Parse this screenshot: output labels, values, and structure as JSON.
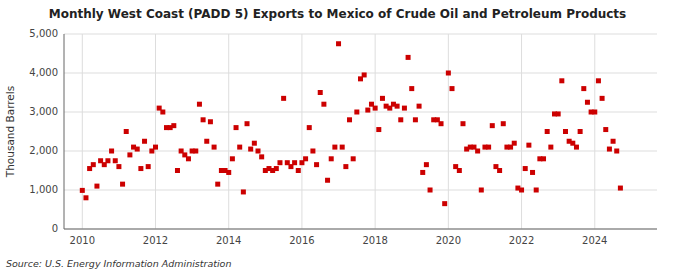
{
  "chart_data": {
    "type": "scatter",
    "title": "Monthly West Coast (PADD 5) Exports to Mexico of Crude Oil and Petroleum Products",
    "ylabel": "Thousand Barrels",
    "annotations": [
      "Source: U.S. Energy Information Administration"
    ],
    "color": "#cc0000",
    "marker": "square",
    "grid": true,
    "xlim": [
      2009.5,
      2025.7
    ],
    "xticks": [
      2010,
      2012,
      2014,
      2016,
      2018,
      2020,
      2022,
      2024
    ],
    "ylim": [
      0,
      5000
    ],
    "yticks": [
      0,
      {
        "value": 1000,
        "label": "1,000"
      },
      {
        "value": 2000,
        "label": "2,000"
      },
      {
        "value": 3000,
        "label": "3,000"
      },
      {
        "value": 4000,
        "label": "4,000"
      },
      {
        "value": 5000,
        "label": "5,000"
      }
    ],
    "x": [
      2010.0,
      2010.1,
      2010.2,
      2010.3,
      2010.4,
      2010.5,
      2010.6,
      2010.7,
      2010.8,
      2010.9,
      2011.0,
      2011.1,
      2011.2,
      2011.3,
      2011.4,
      2011.5,
      2011.6,
      2011.7,
      2011.8,
      2011.9,
      2012.0,
      2012.1,
      2012.2,
      2012.3,
      2012.4,
      2012.5,
      2012.6,
      2012.7,
      2012.8,
      2012.9,
      2013.0,
      2013.1,
      2013.2,
      2013.3,
      2013.4,
      2013.5,
      2013.6,
      2013.7,
      2013.8,
      2013.9,
      2014.0,
      2014.1,
      2014.2,
      2014.3,
      2014.4,
      2014.5,
      2014.6,
      2014.7,
      2014.8,
      2014.9,
      2015.0,
      2015.1,
      2015.2,
      2015.3,
      2015.4,
      2015.5,
      2015.6,
      2015.7,
      2015.8,
      2015.9,
      2016.0,
      2016.1,
      2016.2,
      2016.3,
      2016.4,
      2016.5,
      2016.6,
      2016.7,
      2016.8,
      2016.9,
      2017.0,
      2017.1,
      2017.2,
      2017.3,
      2017.4,
      2017.5,
      2017.6,
      2017.7,
      2017.8,
      2017.9,
      2018.0,
      2018.1,
      2018.2,
      2018.3,
      2018.4,
      2018.5,
      2018.6,
      2018.7,
      2018.8,
      2018.9,
      2019.0,
      2019.1,
      2019.2,
      2019.3,
      2019.4,
      2019.5,
      2019.6,
      2019.7,
      2019.8,
      2019.9,
      2020.0,
      2020.1,
      2020.2,
      2020.3,
      2020.4,
      2020.5,
      2020.6,
      2020.7,
      2020.8,
      2020.9,
      2021.0,
      2021.1,
      2021.2,
      2021.3,
      2021.4,
      2021.5,
      2021.6,
      2021.7,
      2021.8,
      2021.9,
      2022.0,
      2022.1,
      2022.2,
      2022.3,
      2022.4,
      2022.5,
      2022.6,
      2022.7,
      2022.8,
      2022.9,
      2023.0,
      2023.1,
      2023.2,
      2023.3,
      2023.4,
      2023.5,
      2023.6,
      2023.7,
      2023.8,
      2023.9,
      2024.0,
      2024.1,
      2024.2,
      2024.3,
      2024.4,
      2024.5,
      2024.6,
      2024.7
    ],
    "values": [
      990,
      800,
      1550,
      1650,
      1100,
      1750,
      1650,
      1750,
      2000,
      1750,
      1600,
      1150,
      2500,
      1900,
      2100,
      2050,
      1550,
      2250,
      1600,
      2000,
      2100,
      3100,
      3000,
      2600,
      2600,
      2650,
      1500,
      2000,
      1900,
      1800,
      2000,
      2000,
      3200,
      2800,
      2250,
      2750,
      2100,
      1150,
      1500,
      1500,
      1450,
      1800,
      2600,
      2100,
      950,
      2700,
      2050,
      2200,
      2000,
      1850,
      1500,
      1550,
      1500,
      1550,
      1700,
      3350,
      1700,
      1600,
      1700,
      1500,
      1700,
      1800,
      2600,
      2000,
      1650,
      3500,
      3200,
      1250,
      1800,
      2100,
      4750,
      2100,
      1600,
      2800,
      1800,
      3000,
      3850,
      3950,
      3050,
      3200,
      3100,
      2550,
      3350,
      3150,
      3100,
      3200,
      3150,
      2800,
      3100,
      4400,
      3600,
      2800,
      3150,
      1450,
      1650,
      1000,
      2800,
      2800,
      2700,
      650,
      4000,
      3600,
      1600,
      1500,
      2700,
      2050,
      2100,
      2100,
      2000,
      1000,
      2100,
      2100,
      2650,
      1600,
      1500,
      2700,
      2100,
      2100,
      2200,
      1050,
      1000,
      1550,
      2150,
      1450,
      1000,
      1800,
      1800,
      2500,
      2100,
      2950,
      2950,
      3800,
      2500,
      2250,
      2200,
      2100,
      2500,
      3600,
      3250,
      3000,
      3000,
      3800,
      3350,
      2550,
      2050,
      2250,
      2000,
      1050
    ]
  }
}
